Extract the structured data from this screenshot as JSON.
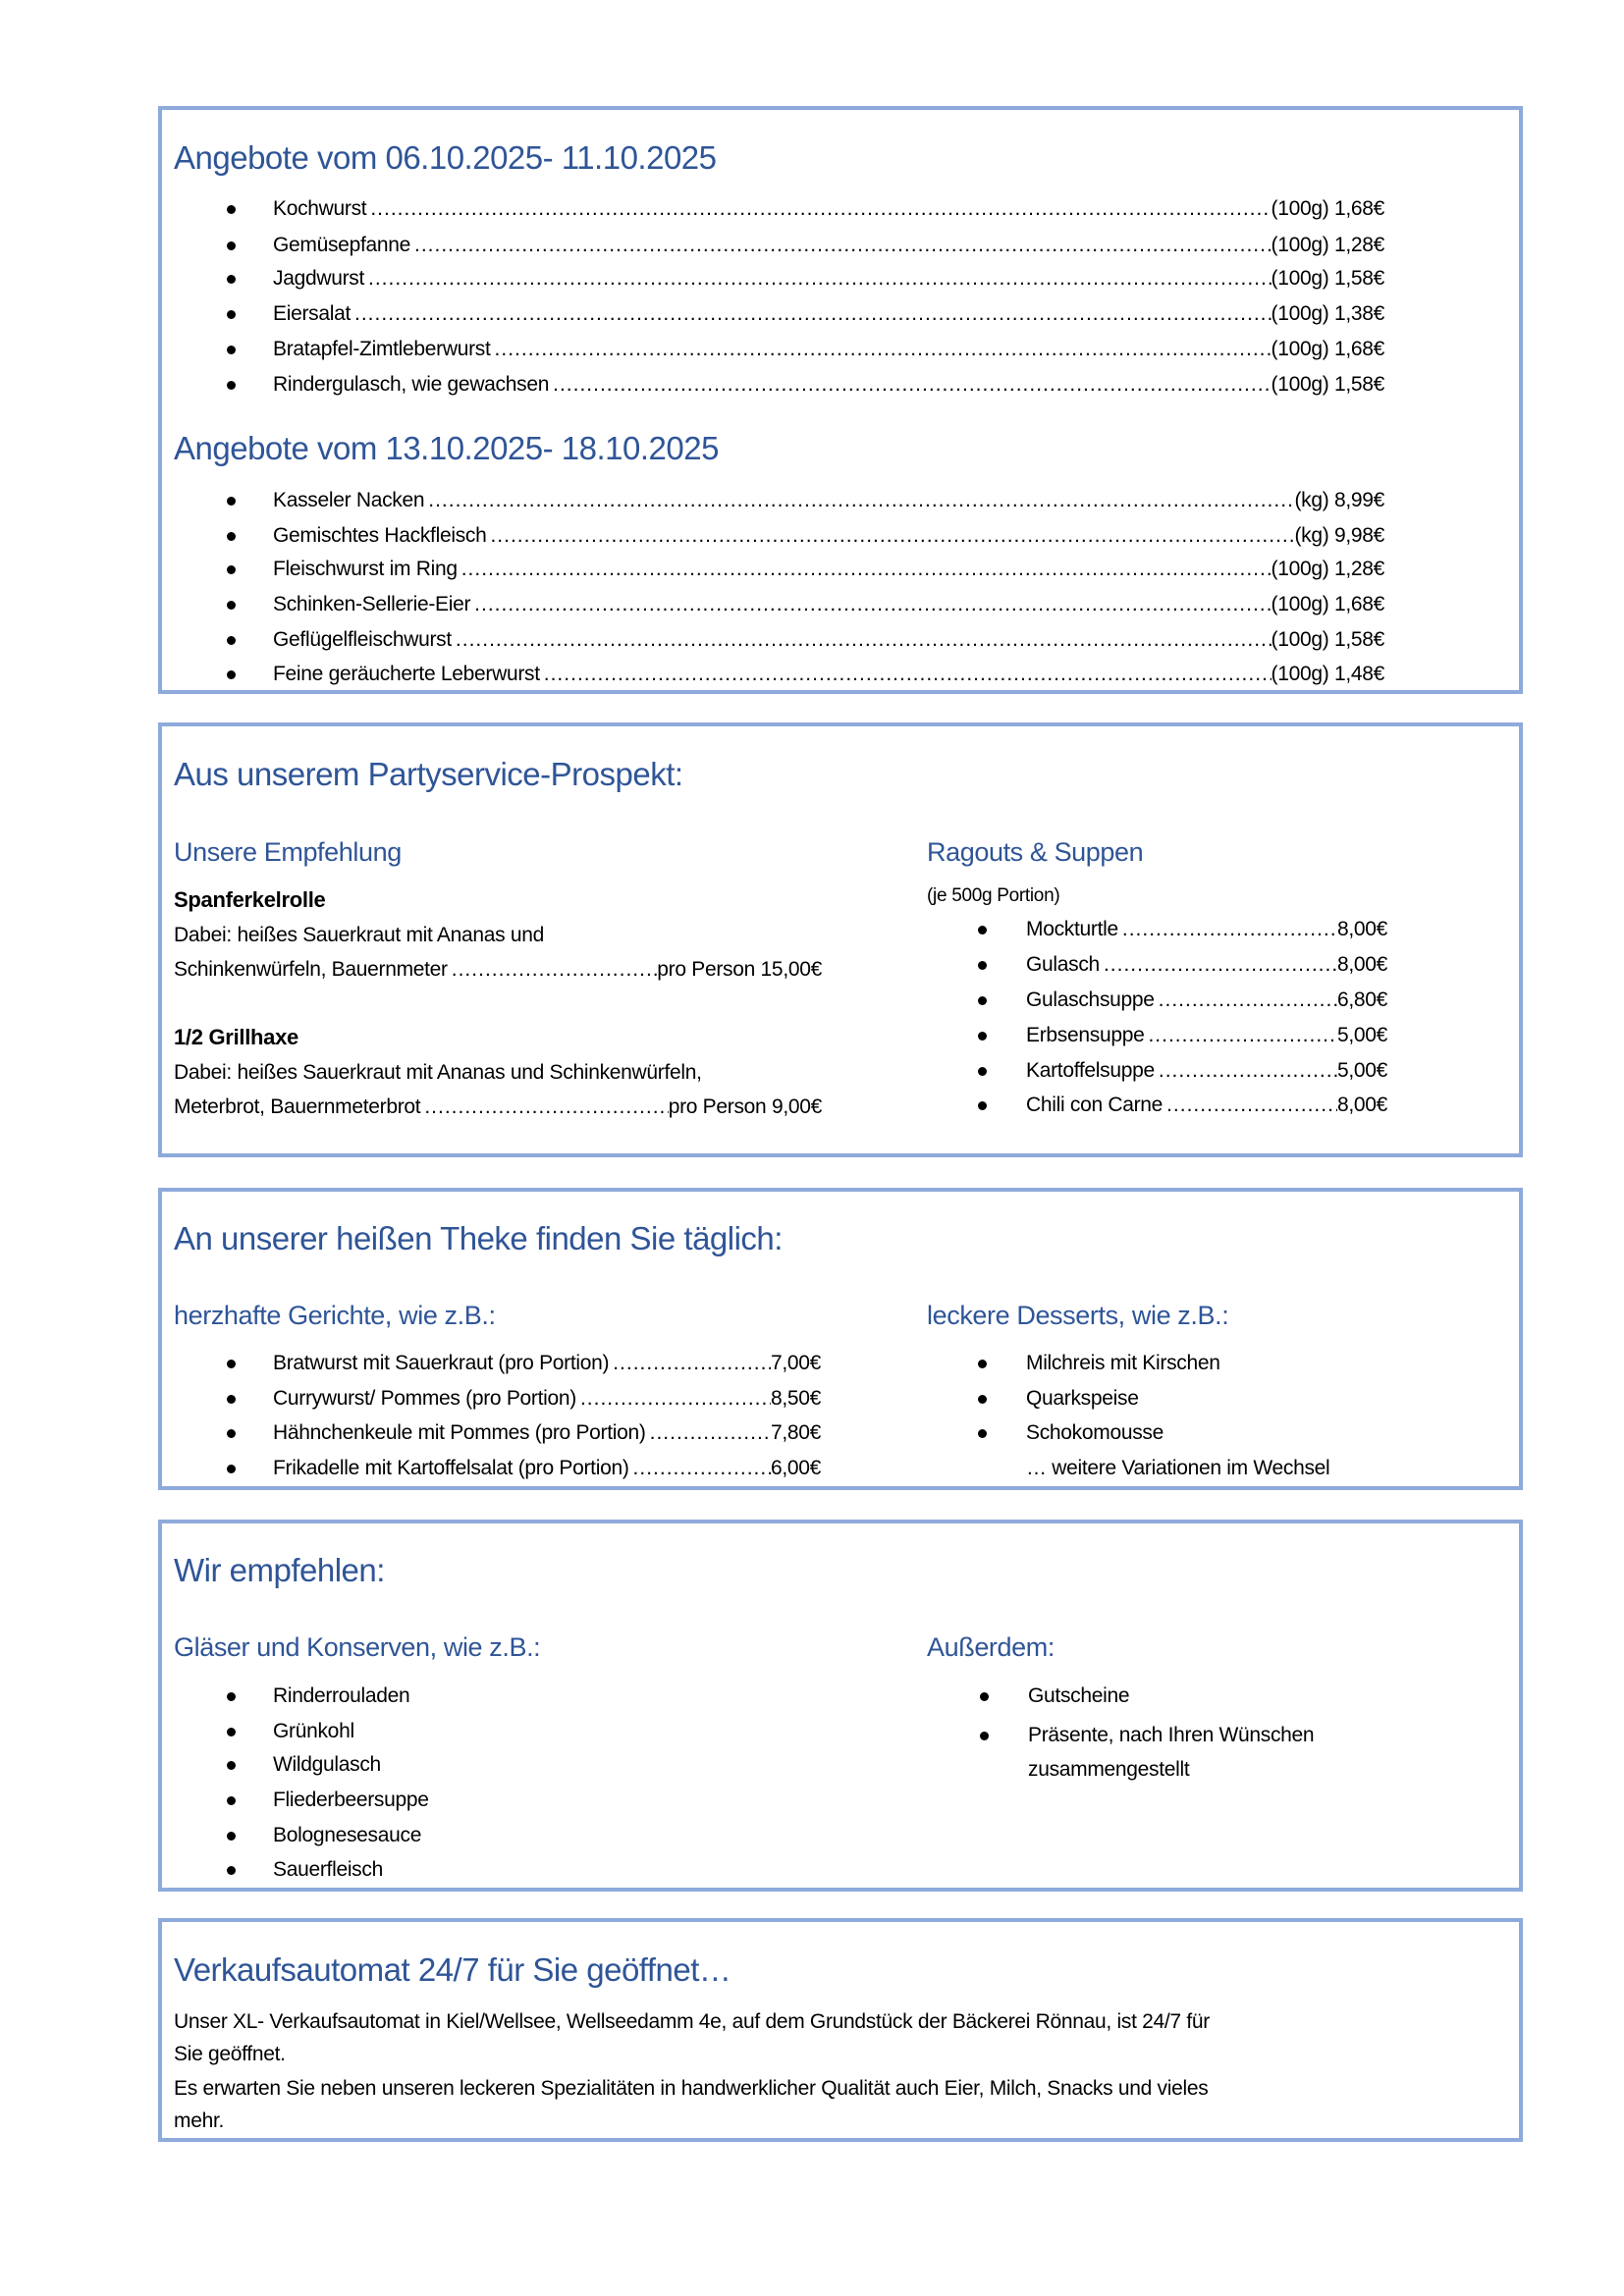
{
  "offers_week1": {
    "title": "Angebote vom 06.10.2025- 11.10.2025",
    "items": [
      {
        "name": "Kochwurst",
        "price": "(100g) 1,68€"
      },
      {
        "name": "Gemüsepfanne",
        "price": "(100g) 1,28€"
      },
      {
        "name": "Jagdwurst",
        "price": "(100g) 1,58€"
      },
      {
        "name": "Eiersalat",
        "price": "(100g) 1,38€"
      },
      {
        "name": "Bratapfel-Zimtleberwurst",
        "price": "(100g) 1,68€"
      },
      {
        "name": "Rindergulasch, wie gewachsen",
        "price": "(100g) 1,58€"
      }
    ]
  },
  "offers_week2": {
    "title": "Angebote vom 13.10.2025- 18.10.2025",
    "items": [
      {
        "name": "Kasseler Nacken",
        "price": "(kg) 8,99€"
      },
      {
        "name": "Gemischtes Hackfleisch",
        "price": "(kg) 9,98€"
      },
      {
        "name": "Fleischwurst im Ring",
        "price": "(100g) 1,28€"
      },
      {
        "name": "Schinken-Sellerie-Eier",
        "price": "(100g) 1,68€"
      },
      {
        "name": "Geflügelfleischwurst",
        "price": "(100g) 1,58€"
      },
      {
        "name": "Feine geräucherte Leberwurst",
        "price": "(100g) 1,48€"
      }
    ]
  },
  "partyservice": {
    "title": "Aus unserem Partyservice-Prospekt:",
    "recommendation": {
      "title": "Unsere Empfehlung",
      "dish1": {
        "name": "Spanferkelrolle",
        "line1": "Dabei: heißes Sauerkraut mit Ananas und",
        "line2": "Schinkenwürfeln, Bauernmeter",
        "price": "pro Person 15,00€"
      },
      "dish2": {
        "name": "1/2 Grillhaxe",
        "line1": "Dabei: heißes Sauerkraut mit Ananas und Schinkenwürfeln,",
        "line2": "Meterbrot, Bauernmeterbrot",
        "price": "pro Person 9,00€"
      }
    },
    "ragouts": {
      "title": "Ragouts & Suppen",
      "note": "(je 500g Portion)",
      "items": [
        {
          "name": "Mockturtle",
          "price": "8,00€"
        },
        {
          "name": "Gulasch",
          "price": "8,00€"
        },
        {
          "name": "Gulaschsuppe",
          "price": "6,80€"
        },
        {
          "name": "Erbsensuppe",
          "price": "5,00€"
        },
        {
          "name": "Kartoffelsuppe",
          "price": "5,00€"
        },
        {
          "name": "Chili con Carne",
          "price": "8,00€"
        }
      ]
    }
  },
  "hot_counter": {
    "title": "An unserer heißen Theke finden Sie täglich:",
    "hearty": {
      "title": "herzhafte Gerichte, wie z.B.:",
      "items": [
        {
          "name": "Bratwurst mit Sauerkraut (pro Portion)",
          "price": "7,00€"
        },
        {
          "name": "Currywurst/ Pommes (pro Portion)",
          "price": "8,50€"
        },
        {
          "name": "Hähnchenkeule mit Pommes (pro Portion)",
          "price": "7,80€"
        },
        {
          "name": "Frikadelle mit Kartoffelsalat (pro Portion)",
          "price": "6,00€"
        }
      ]
    },
    "desserts": {
      "title": "leckere Desserts, wie z.B.:",
      "items": [
        "Milchreis mit Kirschen",
        "Quarkspeise",
        "Schokomousse"
      ],
      "more": "… weitere Variationen im Wechsel"
    }
  },
  "recommend": {
    "title": "Wir empfehlen:",
    "jars": {
      "title": "Gläser und Konserven, wie z.B.:",
      "items": [
        "Rinderrouladen",
        "Grünkohl",
        "Wildgulasch",
        "Fliederbeersuppe",
        "Bolognesesauce",
        "Sauerfleisch"
      ]
    },
    "also": {
      "title": "Außerdem:",
      "items": [
        "Gutscheine",
        "Präsente, nach Ihren Wünschen"
      ],
      "item2_cont": "zusammengestellt"
    }
  },
  "vending": {
    "title": "Verkaufsautomat 24/7 für Sie geöffnet…",
    "lines": [
      "Unser XL- Verkaufsautomat in Kiel/Wellsee, Wellseedamm 4e, auf dem Grundstück der Bäckerei Rönnau, ist 24/7 für",
      "Sie geöffnet.",
      "Es erwarten Sie neben unseren leckeren Spezialitäten in handwerklicher Qualität auch Eier, Milch, Snacks und vieles",
      "mehr."
    ]
  },
  "colors": {
    "heading": "#2f5597",
    "border": "#8eaadb"
  }
}
